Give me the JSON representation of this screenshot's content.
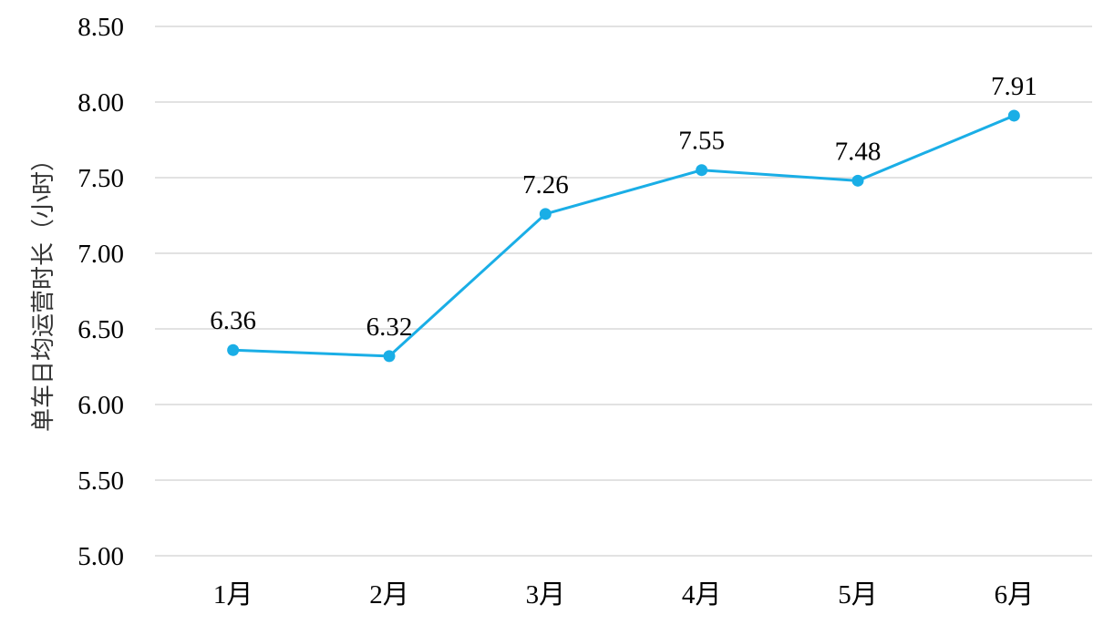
{
  "chart_data": {
    "type": "line",
    "title": "",
    "xlabel": "",
    "ylabel": "单车日均运营时长（小时）",
    "categories": [
      "1月",
      "2月",
      "3月",
      "4月",
      "5月",
      "6月"
    ],
    "series": [
      {
        "values": [
          6.36,
          6.32,
          7.26,
          7.55,
          7.48,
          7.91
        ]
      }
    ],
    "data_labels": [
      "6.36",
      "6.32",
      "7.26",
      "7.55",
      "7.48",
      "7.91"
    ],
    "ylim": [
      5.0,
      8.5
    ],
    "yticks": [
      "5.00",
      "5.50",
      "6.00",
      "6.50",
      "7.00",
      "7.50",
      "8.00",
      "8.50"
    ],
    "grid": true,
    "legend": "none",
    "colors": {
      "line": "#1aaee6",
      "grid": "#d9d9d9"
    }
  }
}
